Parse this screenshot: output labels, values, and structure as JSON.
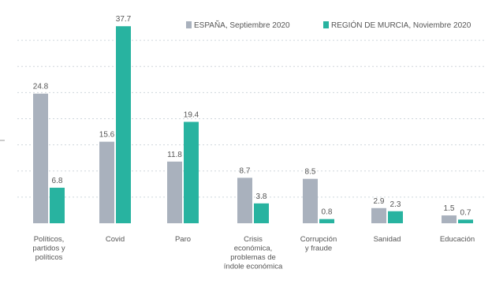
{
  "chart_data": {
    "type": "bar",
    "title": "",
    "xlabel": "",
    "ylabel": "",
    "ylim": [
      0,
      40
    ],
    "grid": true,
    "legend_position": "top-right",
    "categories": [
      [
        "Políticos,",
        "partidos y",
        "políticos"
      ],
      [
        "Covid"
      ],
      [
        "Paro"
      ],
      [
        "Crisis",
        "económica,",
        "problemas de",
        "índole económica"
      ],
      [
        "Corrupción",
        "y fraude"
      ],
      [
        "Sanidad"
      ],
      [
        "Educación"
      ]
    ],
    "series": [
      {
        "name": "ESPAÑA, Septiembre 2020",
        "color": "#a9b1bd",
        "values": [
          24.8,
          15.6,
          11.8,
          8.7,
          8.5,
          2.9,
          1.5
        ],
        "labels": [
          "24.8",
          "15.6",
          "11.8",
          "8.7",
          "8.5",
          "2.9",
          "1.5"
        ]
      },
      {
        "name": "REGIÓN DE MURCIA, Noviembre 2020",
        "color": "#28b3a0",
        "values": [
          6.8,
          37.7,
          19.4,
          3.8,
          0.8,
          2.3,
          0.7
        ],
        "labels": [
          "6.8",
          "37.7",
          "19.4",
          "3.8",
          "0.8",
          "2.3",
          "0.7"
        ]
      }
    ]
  }
}
